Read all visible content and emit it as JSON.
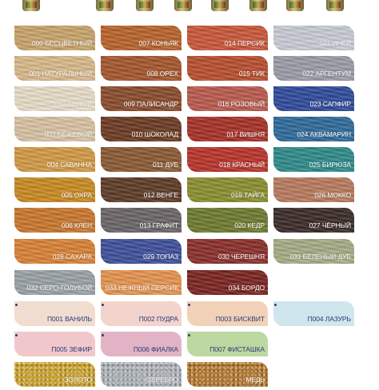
{
  "swatches": [
    {
      "label": "000 БЕСЦВЕТНЫЙ",
      "color": "#c9a46a",
      "col": 0,
      "row": 0
    },
    {
      "label": "001 НАТУРАЛЬНЫЙ",
      "color": "#d9b98a",
      "col": 0,
      "row": 1
    },
    {
      "label": "002 БЕЛЫЙ",
      "color": "#e9ddc8",
      "col": 0,
      "row": 2
    },
    {
      "label": "003 БЕЖЕВЫЙ",
      "color": "#d8c3a4",
      "col": 0,
      "row": 3
    },
    {
      "label": "004 САВАННА",
      "color": "#d39a45",
      "col": 0,
      "row": 4
    },
    {
      "label": "005 ОХРА",
      "color": "#c98a22",
      "col": 0,
      "row": 5
    },
    {
      "label": "006 КЛЕН",
      "color": "#c9772d",
      "col": 0,
      "row": 6
    },
    {
      "label": "028 САХАРА",
      "color": "#d98236",
      "col": 0,
      "row": 7
    },
    {
      "label": "032 СЕРО-ГОЛУБОЙ",
      "color": "#9aa2a6",
      "col": 0,
      "row": 8
    },
    {
      "label": "П001 ВАНИЛЬ",
      "color": "#f1ddd0",
      "col": 0,
      "row": 9,
      "style": "plain",
      "dot": true
    },
    {
      "label": "П005 ЗЕФИР",
      "color": "#f0c8cc",
      "col": 0,
      "row": 10,
      "style": "plain",
      "dot": true
    },
    {
      "label": "ЗОЛОТО",
      "color": "#c8a02e",
      "col": 0,
      "row": 11,
      "style": "metal"
    },
    {
      "label": "007 КОНЬЯК",
      "color": "#b8632a",
      "col": 1,
      "row": 0
    },
    {
      "label": "008 ОРЕХ",
      "color": "#a5562c",
      "col": 1,
      "row": 1
    },
    {
      "label": "009 ПАЛИСАНДР",
      "color": "#8a4b2c",
      "col": 1,
      "row": 2
    },
    {
      "label": "010 ШОКОЛАД",
      "color": "#6b3a22",
      "col": 1,
      "row": 3
    },
    {
      "label": "011 ДУБ",
      "color": "#8a5a34",
      "col": 1,
      "row": 4
    },
    {
      "label": "012 ВЕНГЕ",
      "color": "#5e3a26",
      "col": 1,
      "row": 5
    },
    {
      "label": "013 ГРАФИТ",
      "color": "#6a6466",
      "col": 1,
      "row": 6
    },
    {
      "label": "029 ТОПАЗ",
      "color": "#3d4f9a",
      "col": 1,
      "row": 7
    },
    {
      "label": "033 НЕЖНЫЙ ПЕРСИК",
      "color": "#e6934e",
      "col": 1,
      "row": 8
    },
    {
      "label": "П002 ПУДРА",
      "color": "#f3d4cc",
      "col": 1,
      "row": 9,
      "style": "plain",
      "dot": true
    },
    {
      "label": "П006 ФИАЛКА",
      "color": "#e2b3c5",
      "col": 1,
      "row": 10,
      "style": "plain",
      "dot": true
    },
    {
      "label": "СЕРЕБРО",
      "color": "#a9aeb4",
      "col": 1,
      "row": 11,
      "style": "metal"
    },
    {
      "label": "014 ПЕРСИК",
      "color": "#c8573a",
      "col": 2,
      "row": 0
    },
    {
      "label": "015 ТИК",
      "color": "#b84e2e",
      "col": 2,
      "row": 1
    },
    {
      "label": "016 РОЗОВЫЙ",
      "color": "#b95a4e",
      "col": 2,
      "row": 2
    },
    {
      "label": "017 ВИШНЯ",
      "color": "#a63026",
      "col": 2,
      "row": 3
    },
    {
      "label": "018 КРАСНЫЙ",
      "color": "#b8332a",
      "col": 2,
      "row": 4
    },
    {
      "label": "019 ТАЙГА",
      "color": "#8a8e2e",
      "col": 2,
      "row": 5
    },
    {
      "label": "020 КЕДР",
      "color": "#6d7a2e",
      "col": 2,
      "row": 6
    },
    {
      "label": "030 ЧЕРЕШНЯ",
      "color": "#8a2e2a",
      "col": 2,
      "row": 7
    },
    {
      "label": "034 БОРДО",
      "color": "#7a2420",
      "col": 2,
      "row": 8
    },
    {
      "label": "П003 БИСКВИТ",
      "color": "#f1d2b8",
      "col": 2,
      "row": 9,
      "style": "plain",
      "dot": true
    },
    {
      "label": "П007 ФИСТАШКА",
      "color": "#bcd8a0",
      "col": 2,
      "row": 10,
      "style": "plain",
      "dot": true
    },
    {
      "label": "МЕДЬ",
      "color": "#b0762e",
      "col": 2,
      "row": 11,
      "style": "metal"
    },
    {
      "label": "021 ИНЕЙ",
      "color": "#c9ccd6",
      "col": 3,
      "row": 0
    },
    {
      "label": "022 АРГЕНТУМ",
      "color": "#9a9ca8",
      "col": 3,
      "row": 1
    },
    {
      "label": "023 САПФИР",
      "color": "#2e4a9a",
      "col": 3,
      "row": 2
    },
    {
      "label": "024 АКВАМАРИН",
      "color": "#2e6a9a",
      "col": 3,
      "row": 3
    },
    {
      "label": "025 БИРЮЗА",
      "color": "#2e8a8a",
      "col": 3,
      "row": 4
    },
    {
      "label": "026 МОККО",
      "color": "#b87a5e",
      "col": 3,
      "row": 5
    },
    {
      "label": "027 ЧЁРНЫЙ",
      "color": "#3a2a26",
      "col": 3,
      "row": 6
    },
    {
      "label": "031 БЕЛЕНЫЙ ДУБ",
      "color": "#a6ac86",
      "col": 3,
      "row": 7
    },
    {
      "label": "П004 ЛАЗУРЬ",
      "color": "#cfe6ec",
      "col": 3,
      "row": 9,
      "style": "plain",
      "dot": true
    }
  ]
}
